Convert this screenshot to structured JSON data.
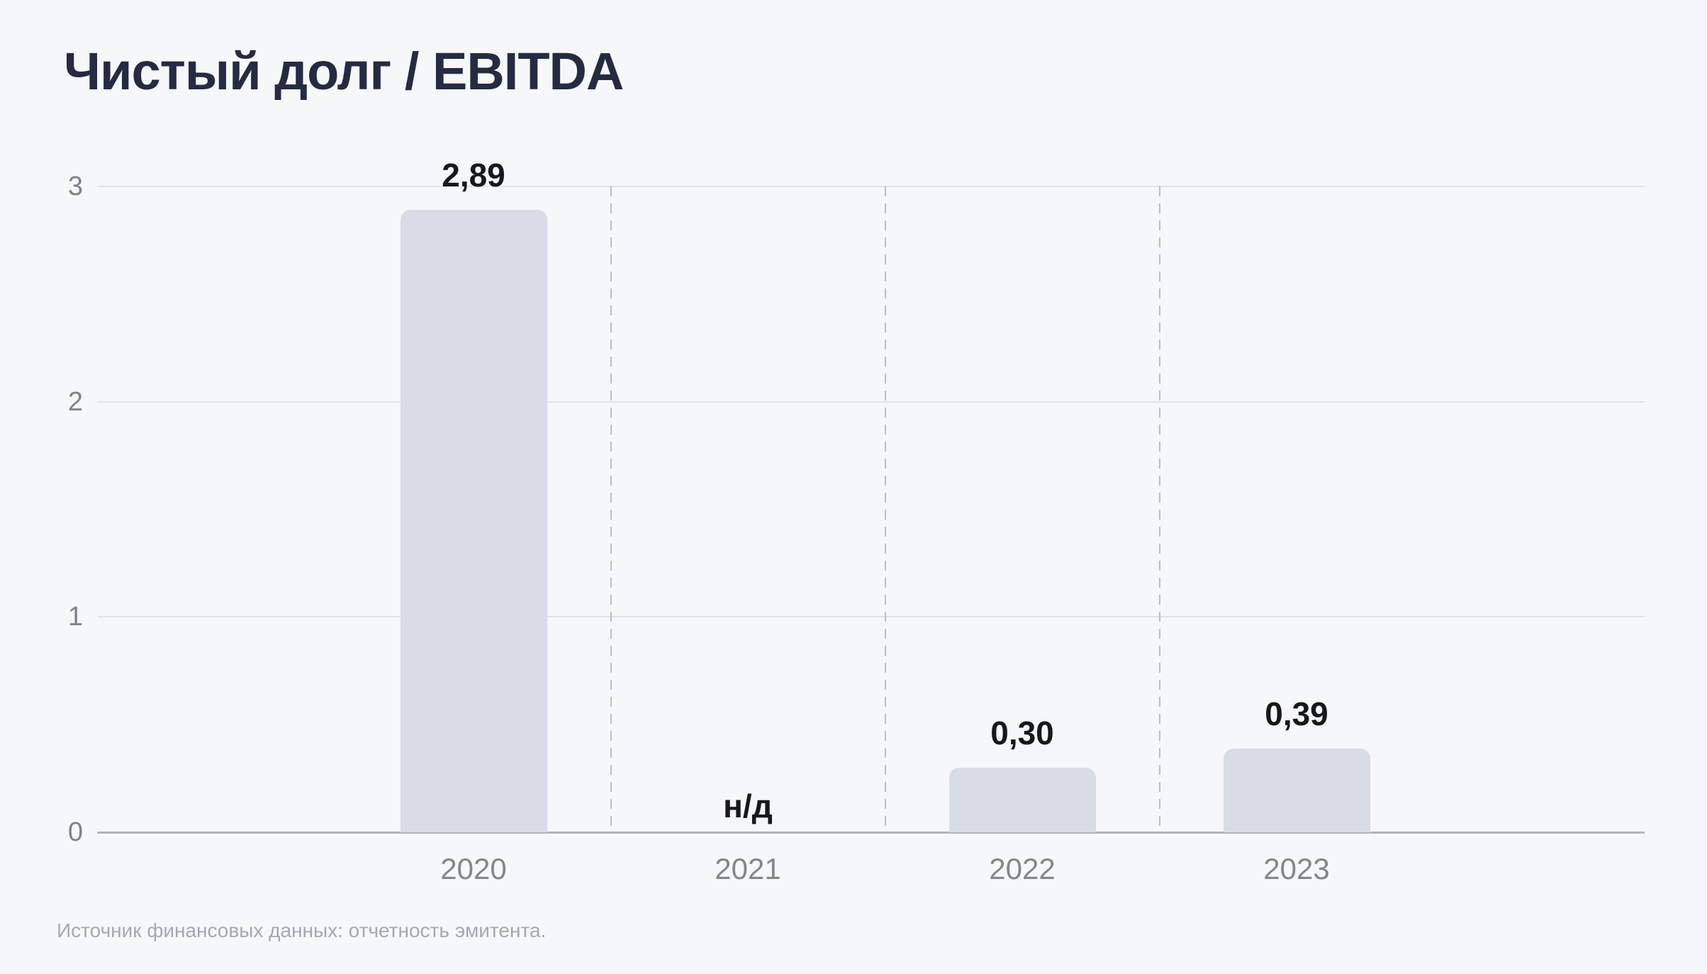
{
  "title": "Чистый долг / EBITDA",
  "footer": "Источник финансовых данных: отчетность эмитента.",
  "colors": {
    "background": "#f6f7f9",
    "title": "#242b42",
    "bar": "#d8dce7",
    "axis_label": "#7e828e",
    "year_label": "#83868f",
    "value_label": "#16181d",
    "gridline": "#e0e2e7",
    "baseline": "#b2b4bc",
    "separator": "#b9bdc7",
    "footer": "#a4a8b3"
  },
  "chart_data": {
    "type": "bar",
    "title": "Чистый долг / EBITDA",
    "categories": [
      "2020",
      "2021",
      "2022",
      "2023"
    ],
    "values": [
      2.89,
      null,
      0.3,
      0.39
    ],
    "value_labels": [
      "2,89",
      "н/д",
      "0,30",
      "0,39"
    ],
    "missing_value_label": "н/д",
    "xlabel": "",
    "ylabel": "",
    "ylim": [
      0,
      3
    ],
    "yticks": [
      0,
      1,
      2,
      3
    ],
    "grid": "horizontal",
    "category_separators": "dashed-vertical-between-categories",
    "legend": "none",
    "source_note": "Источник финансовых данных: отчетность эмитента."
  }
}
